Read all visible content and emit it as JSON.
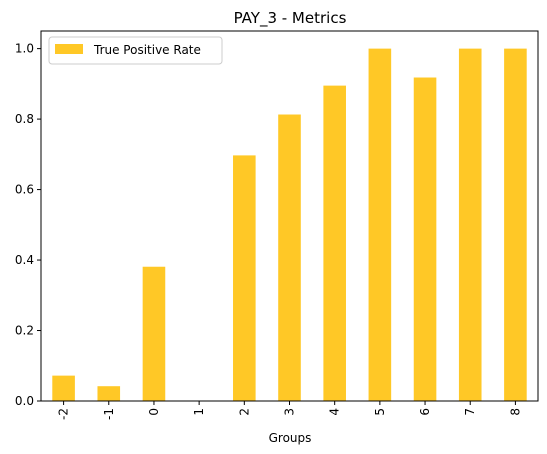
{
  "chart_data": {
    "type": "bar",
    "title": "PAY_3 - Metrics",
    "xlabel": "Groups",
    "ylabel": "",
    "categories": [
      "-2",
      "-1",
      "0",
      "1",
      "2",
      "3",
      "4",
      "5",
      "6",
      "7",
      "8"
    ],
    "series": [
      {
        "name": "True Positive Rate",
        "color": "#ffc826",
        "values": [
          0.072,
          0.042,
          0.381,
          0.0,
          0.697,
          0.813,
          0.895,
          1.0,
          0.918,
          1.0,
          1.0
        ]
      }
    ],
    "ylim": [
      0,
      1.05
    ],
    "yticks": [
      "0.0",
      "0.2",
      "0.4",
      "0.6",
      "0.8",
      "1.0"
    ],
    "ytick_values": [
      0.0,
      0.2,
      0.4,
      0.6,
      0.8,
      1.0
    ],
    "grid": false,
    "legend_position": "upper-left"
  }
}
